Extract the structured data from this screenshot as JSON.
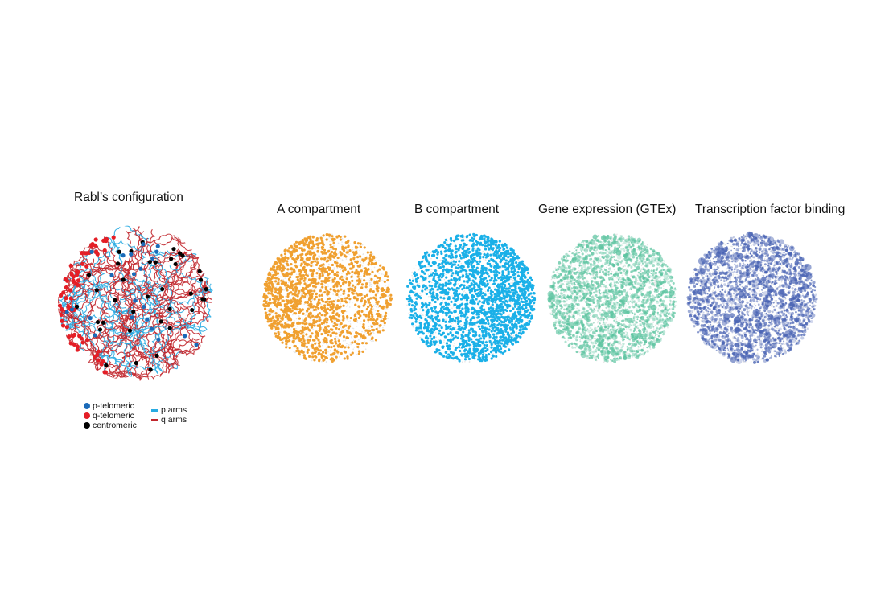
{
  "panels": {
    "rabl": {
      "title": "Rabl’s configuration"
    },
    "a_compartment": {
      "title": "A compartment",
      "color": "#f0a030"
    },
    "b_compartment": {
      "title": "B compartment",
      "color": "#1ab0e8"
    },
    "gene_expression": {
      "title": "Gene expression (GTEx)",
      "color": "#5cc4a0"
    },
    "tf_binding": {
      "title": "Transcription factor binding",
      "color": "#4a64b4"
    }
  },
  "legend": {
    "p_telomeric": {
      "label": "p-telomeric",
      "color": "#1a6ab8"
    },
    "q_telomeric": {
      "label": "q-telomeric",
      "color": "#e41e26"
    },
    "centromeric": {
      "label": "centromeric",
      "color": "#000000"
    },
    "p_arms": {
      "label": "p arms",
      "color": "#29abe2"
    },
    "q_arms": {
      "label": "q arms",
      "color": "#c1272d"
    }
  }
}
